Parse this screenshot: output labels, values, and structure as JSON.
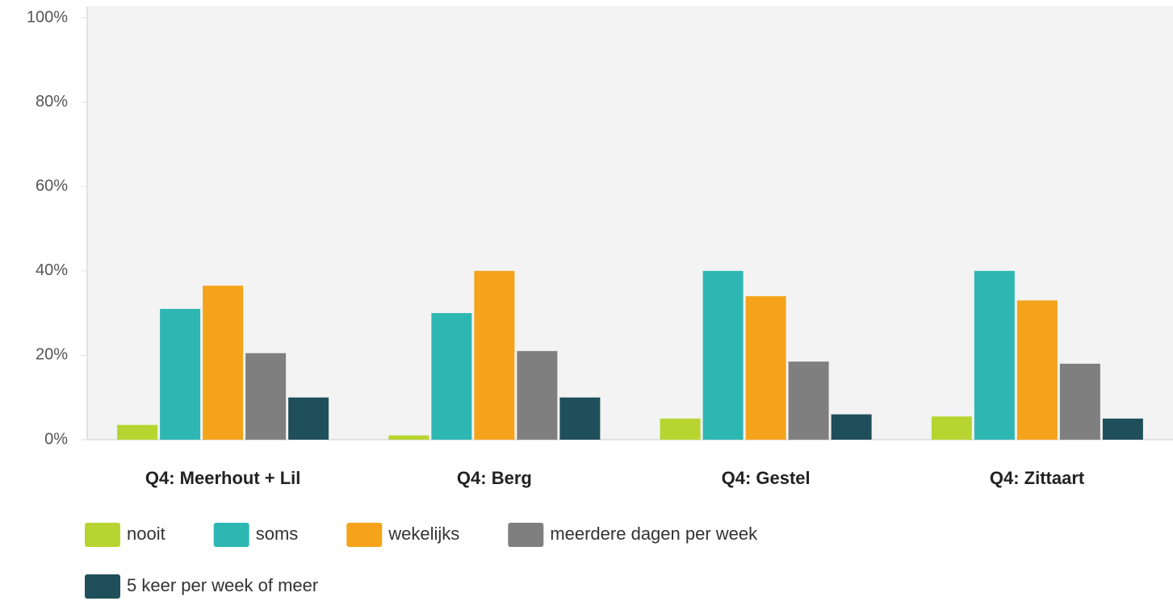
{
  "chart_data": {
    "type": "bar",
    "categories": [
      "Q4: Meerhout + Lil",
      "Q4: Berg",
      "Q4: Gestel",
      "Q4: Zittaart"
    ],
    "series": [
      {
        "name": "nooit",
        "color": "#b8d430",
        "values": [
          3.5,
          1,
          5,
          5.5
        ]
      },
      {
        "name": "soms",
        "color": "#2eb7b2",
        "values": [
          31,
          30,
          40,
          40
        ]
      },
      {
        "name": "wekelijks",
        "color": "#f5a31a",
        "values": [
          36.5,
          40,
          34,
          33
        ]
      },
      {
        "name": "meerdere dagen per week",
        "color": "#7f7f7f",
        "values": [
          20.5,
          21,
          18.5,
          18
        ]
      },
      {
        "name": "5 keer per week of meer",
        "color": "#1f4f5a",
        "values": [
          10,
          10,
          6,
          5
        ]
      }
    ],
    "ylim": [
      0,
      100
    ],
    "yticks": [
      {
        "value": 0,
        "label": "0%"
      },
      {
        "value": 20,
        "label": "20%"
      },
      {
        "value": 40,
        "label": "40%"
      },
      {
        "value": 60,
        "label": "60%"
      },
      {
        "value": 80,
        "label": "80%"
      },
      {
        "value": 100,
        "label": "100%"
      }
    ],
    "legend": "bottom"
  }
}
